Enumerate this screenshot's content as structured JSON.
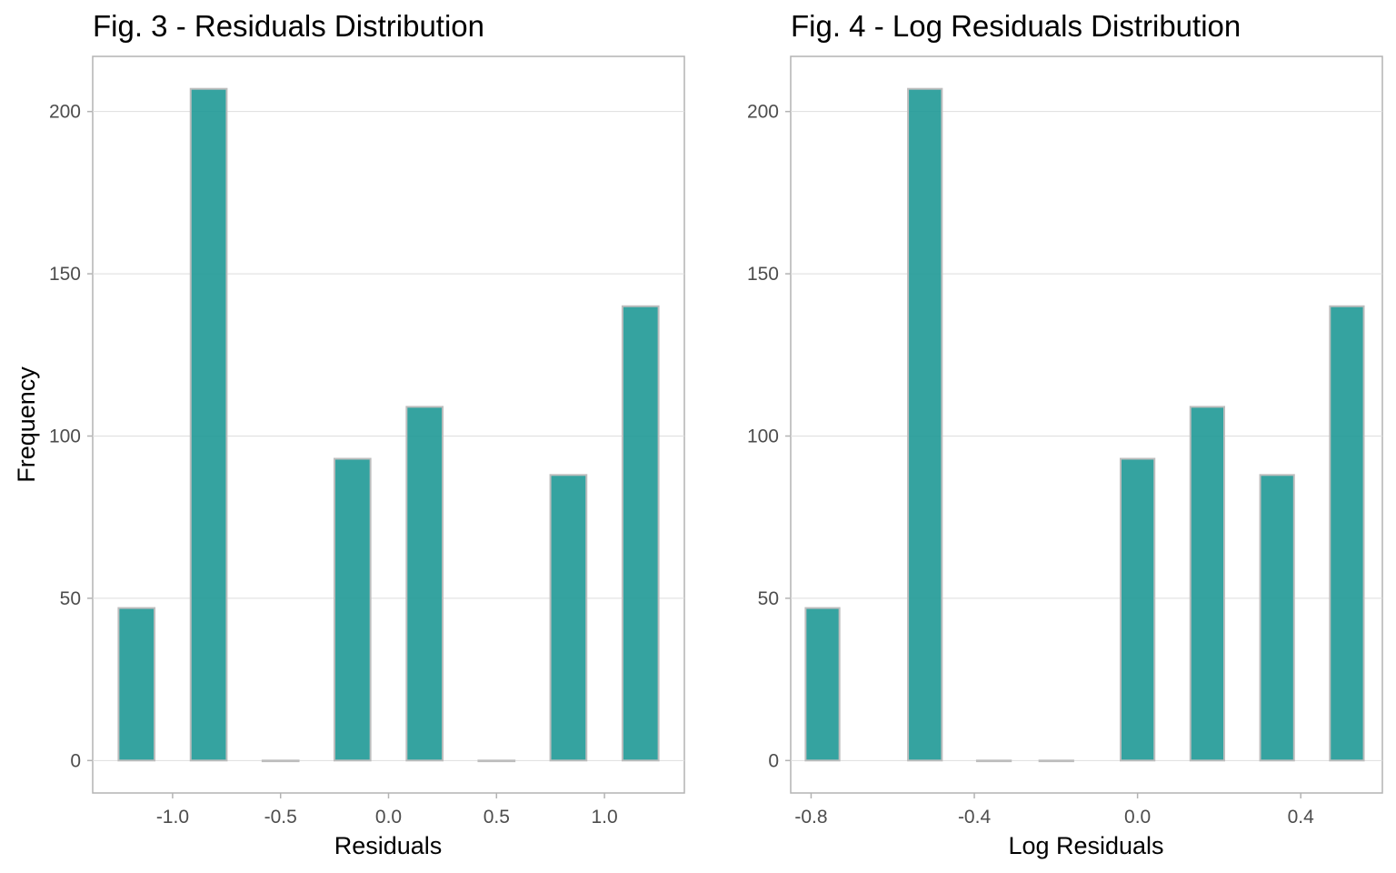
{
  "chart_data": [
    {
      "type": "bar",
      "title": "Fig. 3 - Residuals Distribution",
      "xlabel": "Residuals",
      "ylabel": "Frequency",
      "bin_width": 0.167,
      "x": [
        -1.167,
        -0.833,
        -0.5,
        -0.167,
        0.167,
        0.5,
        0.833,
        1.167
      ],
      "values": [
        47,
        207,
        0,
        93,
        109,
        0,
        88,
        140
      ],
      "xlim": [
        -1.37,
        1.37
      ],
      "ylim": [
        -10,
        217
      ],
      "xticks": [
        -1.0,
        -0.5,
        0.0,
        0.5,
        1.0
      ],
      "xtick_labels": [
        "-1.0",
        "-0.5",
        "0.0",
        "0.5",
        "1.0"
      ],
      "yticks": [
        0,
        50,
        100,
        150,
        200
      ],
      "ytick_labels": [
        "0",
        "50",
        "100",
        "150",
        "200"
      ],
      "grid": true,
      "bar_color": "#1f9996",
      "bar_outline": "#bdbdbd"
    },
    {
      "type": "bar",
      "title": "Fig. 4 - Log Residuals Distribution",
      "xlabel": "Log Residuals",
      "ylabel": "",
      "bin_width": 0.083,
      "x": [
        -0.772,
        -0.521,
        -0.352,
        -0.199,
        0.0,
        0.171,
        0.342,
        0.513
      ],
      "values": [
        47,
        207,
        0,
        0,
        93,
        109,
        88,
        140
      ],
      "xlim": [
        -0.85,
        0.6
      ],
      "ylim": [
        -10,
        217
      ],
      "xticks": [
        -0.8,
        -0.4,
        0.0,
        0.4
      ],
      "xtick_labels": [
        "-0.8",
        "-0.4",
        "0.0",
        "0.4"
      ],
      "yticks": [
        0,
        50,
        100,
        150,
        200
      ],
      "ytick_labels": [
        "0",
        "50",
        "100",
        "150",
        "200"
      ],
      "grid": true,
      "bar_color": "#1f9996",
      "bar_outline": "#bdbdbd"
    }
  ]
}
